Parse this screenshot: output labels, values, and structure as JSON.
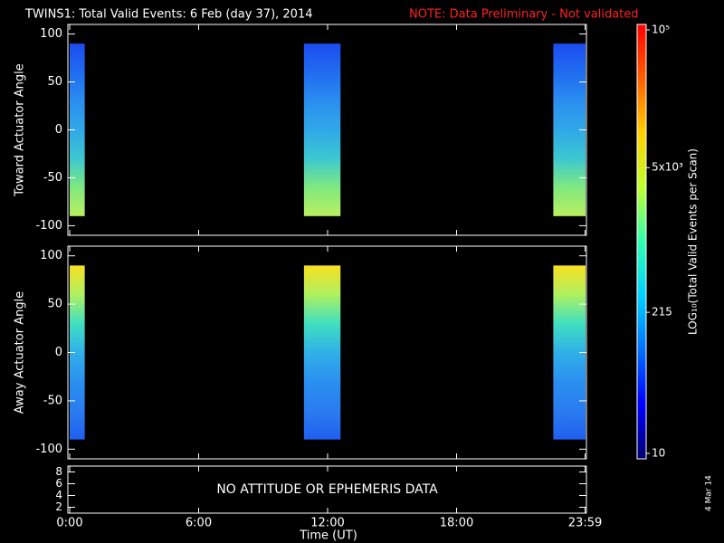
{
  "chart_data": {
    "type": "heatmap",
    "title": "TWINS1: Total Valid Events:  6 Feb (day  37), 2014",
    "note": "NOTE: Data Preliminary - Not validated",
    "note_color": "#ff2020",
    "x_label": "Time (UT)",
    "xlim": [
      0,
      24
    ],
    "xticks": [
      {
        "value": 0,
        "label": "0:00"
      },
      {
        "value": 6,
        "label": "6:00"
      },
      {
        "value": 12,
        "label": "12:00"
      },
      {
        "value": 18,
        "label": "18:00"
      },
      {
        "value": 23.98,
        "label": "23:59"
      }
    ],
    "panels": [
      {
        "y_label": "Toward Actuator Angle",
        "ylim": [
          -110,
          110
        ],
        "yticks": [
          -100,
          -50,
          0,
          50,
          100
        ],
        "segments": [
          [
            0,
            0.7
          ],
          [
            10.9,
            12.6
          ],
          [
            22.5,
            24
          ]
        ],
        "y_range": [
          -90,
          90
        ],
        "gradient": [
          "#1c4cf0",
          "#1f6cf0",
          "#2a8ef0",
          "#30a8e8",
          "#3cc8d0",
          "#80e880",
          "#b8f060"
        ]
      },
      {
        "y_label": "Away Actuator Angle",
        "ylim": [
          -110,
          110
        ],
        "yticks": [
          -100,
          -50,
          0,
          50,
          100
        ],
        "segments": [
          [
            0,
            0.7
          ],
          [
            10.9,
            12.6
          ],
          [
            22.5,
            24
          ]
        ],
        "y_range": [
          -90,
          90
        ],
        "gradient": [
          "#f8e020",
          "#b0f060",
          "#40e0c0",
          "#30b0e8",
          "#2a90f0",
          "#2a7cf0",
          "#2060f0"
        ]
      },
      {
        "ylim": [
          1,
          9
        ],
        "yticks": [
          2,
          4,
          6,
          8
        ],
        "message": "NO ATTITUDE OR EPHEMERIS DATA"
      }
    ],
    "colorbar": {
      "label": "LOG₁₀(Total Valid Events per Scan)",
      "log": true,
      "lim": [
        10,
        100000
      ],
      "ticks": [
        10,
        215,
        {
          "value": 5000,
          "label": "5x10³"
        },
        {
          "value": 100000,
          "label": "10⁵"
        }
      ],
      "gradient": [
        "#000070",
        "#0000ff",
        "#0070ff",
        "#00d0ff",
        "#30ffb0",
        "#c0ff30",
        "#ffd000",
        "#ff6000",
        "#ff0000"
      ]
    },
    "date_stamp": "4 Mar 14"
  }
}
